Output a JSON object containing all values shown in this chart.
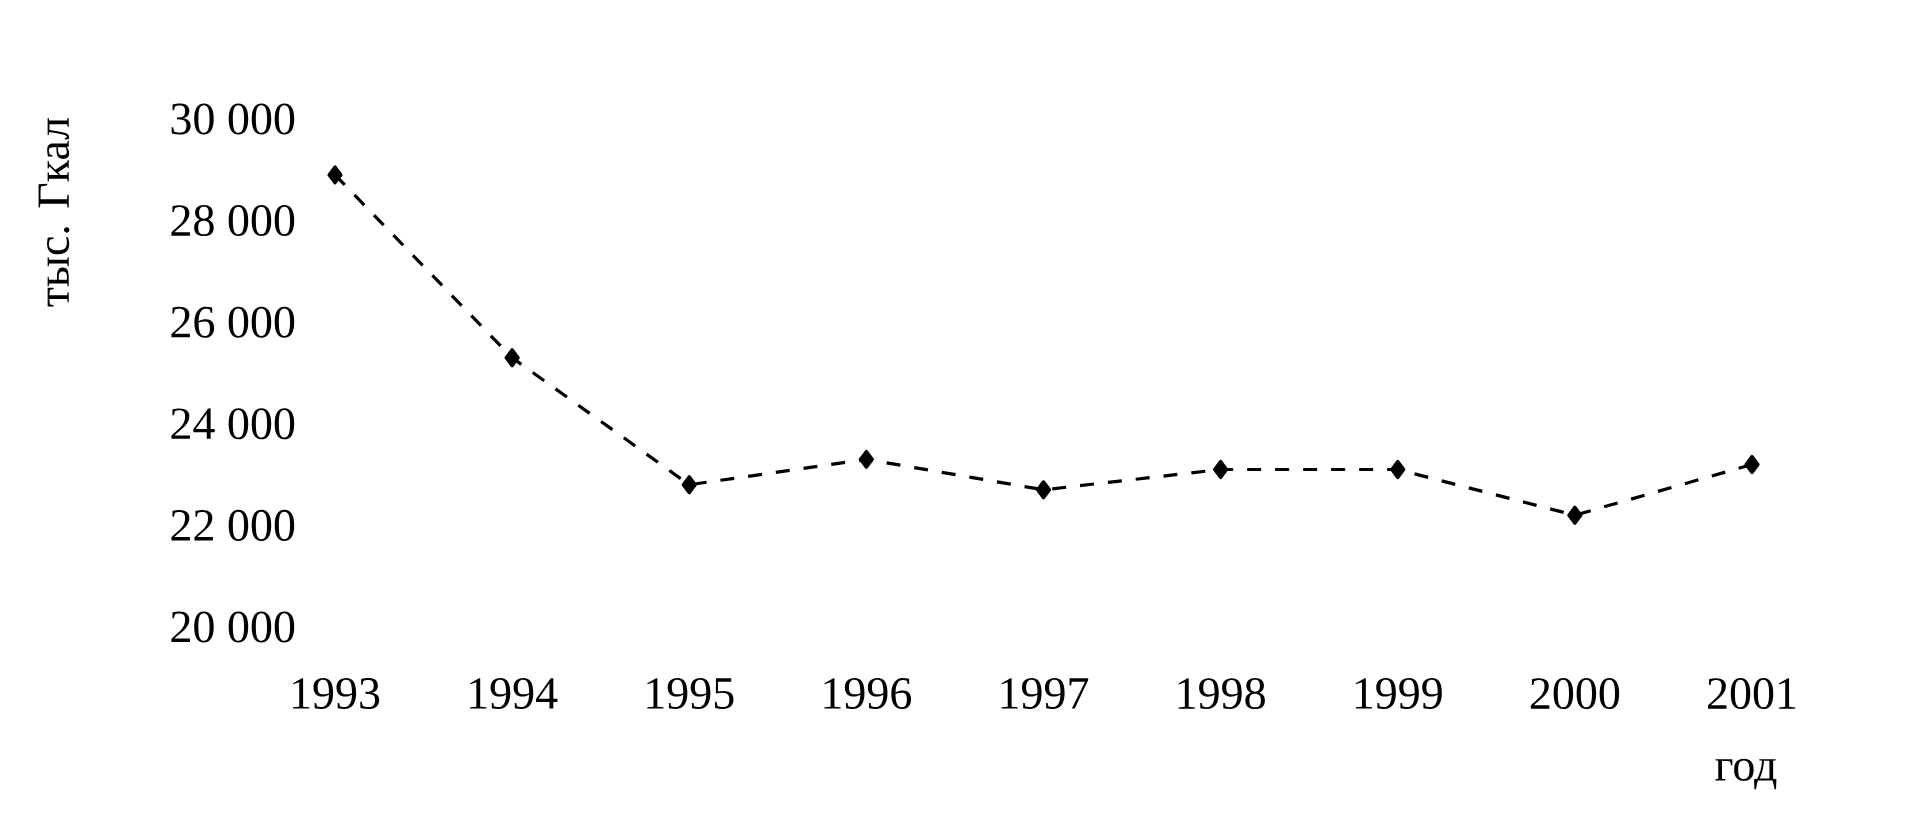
{
  "chart_data": {
    "type": "line",
    "ylabel": "тыс. Гкал",
    "xlabel": "год",
    "categories": [
      "1993",
      "1994",
      "1995",
      "1996",
      "1997",
      "1998",
      "1999",
      "2000",
      "2001"
    ],
    "values": [
      28900,
      25300,
      22800,
      23300,
      22700,
      23100,
      23100,
      22200,
      23200
    ],
    "color": "#000000",
    "marker": "diamond",
    "line_style": "dashed",
    "ylim": [
      20000,
      30000
    ],
    "yticks": [
      {
        "value": 20000,
        "label": "20 000"
      },
      {
        "value": 22000,
        "label": "22 000"
      },
      {
        "value": 24000,
        "label": "24 000"
      },
      {
        "value": 26000,
        "label": "26 000"
      },
      {
        "value": 28000,
        "label": "28 000"
      },
      {
        "value": 30000,
        "label": "30 000"
      }
    ]
  }
}
